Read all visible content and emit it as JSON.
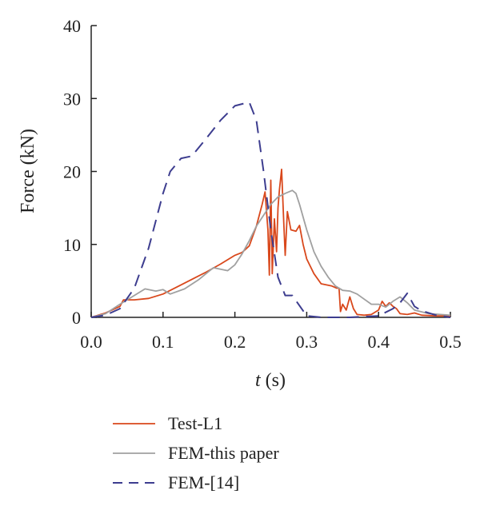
{
  "chart_data": {
    "type": "line",
    "xlabel_var": "t",
    "xlabel_unit": " (s)",
    "ylabel": "Force (kN)",
    "xlim": [
      0,
      0.5
    ],
    "ylim": [
      0,
      40
    ],
    "x_ticks": [
      0.0,
      0.1,
      0.2,
      0.3,
      0.4,
      0.5
    ],
    "x_tick_labels": [
      "0.0",
      "0.1",
      "0.2",
      "0.3",
      "0.4",
      "0.5"
    ],
    "y_ticks": [
      0,
      10,
      20,
      30,
      40
    ],
    "y_tick_labels": [
      "0",
      "10",
      "20",
      "30",
      "40"
    ],
    "grid": false,
    "legend_position": "bottom",
    "series": [
      {
        "name": "Test-L1",
        "color": "#d9481c",
        "dash": "solid",
        "points": [
          [
            0.0,
            0.0
          ],
          [
            0.02,
            0.6
          ],
          [
            0.04,
            1.5
          ],
          [
            0.045,
            2.4
          ],
          [
            0.06,
            2.4
          ],
          [
            0.08,
            2.6
          ],
          [
            0.1,
            3.2
          ],
          [
            0.12,
            4.2
          ],
          [
            0.14,
            5.2
          ],
          [
            0.16,
            6.2
          ],
          [
            0.18,
            7.3
          ],
          [
            0.2,
            8.5
          ],
          [
            0.21,
            8.9
          ],
          [
            0.22,
            9.8
          ],
          [
            0.23,
            12.5
          ],
          [
            0.238,
            15.5
          ],
          [
            0.242,
            17.2
          ],
          [
            0.246,
            12.0
          ],
          [
            0.248,
            5.8
          ],
          [
            0.25,
            18.8
          ],
          [
            0.252,
            6.0
          ],
          [
            0.255,
            13.5
          ],
          [
            0.258,
            9.0
          ],
          [
            0.26,
            15.0
          ],
          [
            0.262,
            17.5
          ],
          [
            0.265,
            20.3
          ],
          [
            0.268,
            13.0
          ],
          [
            0.27,
            8.5
          ],
          [
            0.273,
            14.5
          ],
          [
            0.278,
            12.0
          ],
          [
            0.285,
            11.8
          ],
          [
            0.29,
            12.6
          ],
          [
            0.295,
            10.0
          ],
          [
            0.3,
            8.0
          ],
          [
            0.31,
            6.0
          ],
          [
            0.32,
            4.6
          ],
          [
            0.335,
            4.3
          ],
          [
            0.342,
            4.0
          ],
          [
            0.345,
            4.0
          ],
          [
            0.347,
            0.8
          ],
          [
            0.35,
            1.8
          ],
          [
            0.355,
            1.0
          ],
          [
            0.36,
            2.8
          ],
          [
            0.365,
            1.2
          ],
          [
            0.37,
            0.4
          ],
          [
            0.38,
            0.3
          ],
          [
            0.39,
            0.4
          ],
          [
            0.4,
            1.0
          ],
          [
            0.405,
            2.2
          ],
          [
            0.41,
            1.5
          ],
          [
            0.415,
            2.0
          ],
          [
            0.42,
            1.5
          ],
          [
            0.425,
            1.2
          ],
          [
            0.43,
            0.5
          ],
          [
            0.44,
            0.4
          ],
          [
            0.45,
            0.6
          ],
          [
            0.46,
            0.3
          ],
          [
            0.48,
            0.2
          ],
          [
            0.5,
            0.2
          ]
        ]
      },
      {
        "name": "FEM-this paper",
        "color": "#a0a0a0",
        "dash": "solid",
        "points": [
          [
            0.0,
            0.0
          ],
          [
            0.02,
            0.5
          ],
          [
            0.04,
            1.8
          ],
          [
            0.06,
            3.0
          ],
          [
            0.075,
            3.9
          ],
          [
            0.09,
            3.6
          ],
          [
            0.1,
            3.8
          ],
          [
            0.11,
            3.2
          ],
          [
            0.13,
            3.9
          ],
          [
            0.15,
            5.2
          ],
          [
            0.17,
            6.8
          ],
          [
            0.18,
            6.6
          ],
          [
            0.19,
            6.4
          ],
          [
            0.2,
            7.2
          ],
          [
            0.21,
            8.7
          ],
          [
            0.22,
            10.5
          ],
          [
            0.23,
            12.5
          ],
          [
            0.24,
            14.0
          ],
          [
            0.25,
            15.5
          ],
          [
            0.26,
            16.5
          ],
          [
            0.27,
            17.0
          ],
          [
            0.28,
            17.4
          ],
          [
            0.285,
            17.0
          ],
          [
            0.29,
            15.5
          ],
          [
            0.3,
            12.0
          ],
          [
            0.31,
            9.0
          ],
          [
            0.32,
            7.0
          ],
          [
            0.33,
            5.5
          ],
          [
            0.34,
            4.3
          ],
          [
            0.35,
            3.7
          ],
          [
            0.36,
            3.6
          ],
          [
            0.37,
            3.2
          ],
          [
            0.38,
            2.5
          ],
          [
            0.39,
            1.8
          ],
          [
            0.4,
            1.8
          ],
          [
            0.41,
            1.4
          ],
          [
            0.42,
            2.2
          ],
          [
            0.43,
            2.8
          ],
          [
            0.44,
            2.0
          ],
          [
            0.45,
            1.0
          ],
          [
            0.47,
            0.5
          ],
          [
            0.5,
            0.3
          ]
        ]
      },
      {
        "name": "FEM-[14]",
        "color": "#3d3d8f",
        "dash": "dashed",
        "points": [
          [
            0.0,
            0.0
          ],
          [
            0.02,
            0.3
          ],
          [
            0.04,
            1.2
          ],
          [
            0.06,
            4.0
          ],
          [
            0.08,
            9.5
          ],
          [
            0.1,
            17.0
          ],
          [
            0.11,
            20.0
          ],
          [
            0.125,
            21.8
          ],
          [
            0.14,
            22.1
          ],
          [
            0.16,
            24.5
          ],
          [
            0.18,
            27.0
          ],
          [
            0.2,
            29.0
          ],
          [
            0.22,
            29.5
          ],
          [
            0.23,
            27.0
          ],
          [
            0.24,
            20.0
          ],
          [
            0.25,
            12.0
          ],
          [
            0.26,
            5.5
          ],
          [
            0.27,
            3.0
          ],
          [
            0.28,
            3.0
          ],
          [
            0.3,
            0.2
          ],
          [
            0.32,
            0.0
          ],
          [
            0.36,
            0.0
          ],
          [
            0.4,
            0.2
          ],
          [
            0.42,
            1.2
          ],
          [
            0.43,
            2.0
          ],
          [
            0.44,
            3.3
          ],
          [
            0.45,
            1.5
          ],
          [
            0.46,
            0.9
          ],
          [
            0.48,
            0.3
          ],
          [
            0.5,
            0.0
          ]
        ]
      }
    ]
  }
}
